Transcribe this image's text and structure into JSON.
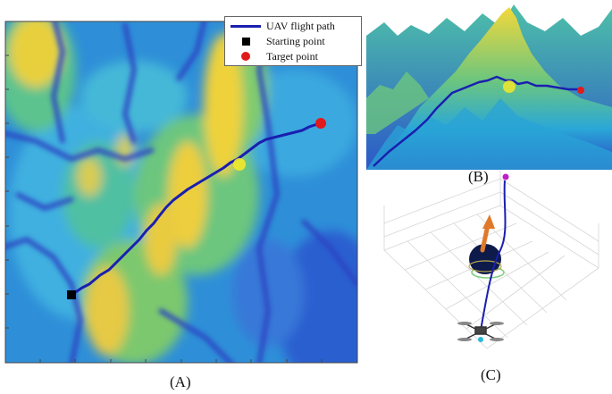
{
  "panel_a": {
    "caption": "(A)",
    "legend": {
      "path_label": "UAV flight path",
      "start_label": "Starting point",
      "target_label": "Target point"
    }
  },
  "panel_b": {
    "caption": "(B)"
  },
  "panel_c": {
    "caption": "(C)"
  },
  "colors": {
    "path": "#1a1fb0",
    "start": "#000000",
    "target": "#e11b1b",
    "terrain_low": "#2a3fc0",
    "terrain_mid": "#22b8b0",
    "terrain_high": "#f2d83a",
    "obstacle": "#0d1a4a",
    "arrow": "#e07a2a",
    "goal_marker": "#c01ec8",
    "drone_marker": "#2ab8d8"
  }
}
